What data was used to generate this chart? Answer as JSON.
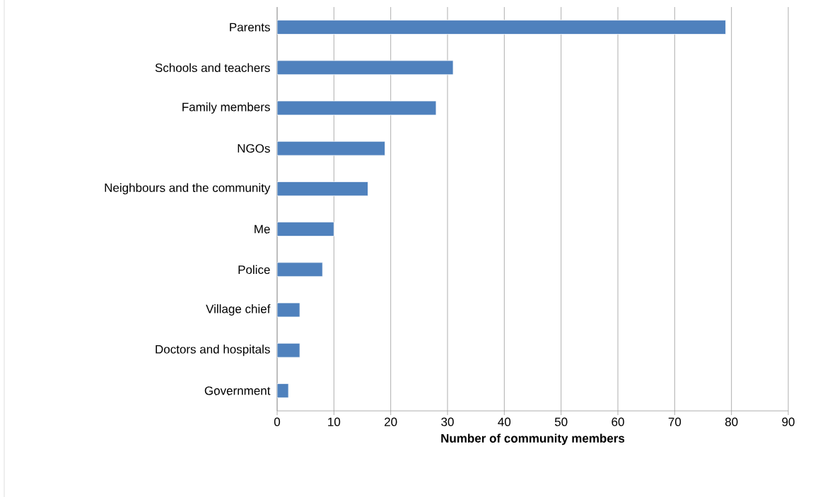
{
  "chart_data": {
    "type": "bar",
    "orientation": "horizontal",
    "xlabel": "Number of community members",
    "categories": [
      "Parents",
      "Schools and teachers",
      "Family members",
      "NGOs",
      "Neighbours and the community",
      "Me",
      "Police",
      "Village chief",
      "Doctors and hospitals",
      "Government"
    ],
    "values": [
      79,
      31,
      28,
      19,
      16,
      10,
      8,
      4,
      4,
      2
    ],
    "color": "#4f81bd",
    "xlim": [
      0,
      90
    ],
    "xticks": [
      0,
      10,
      20,
      30,
      40,
      50,
      60,
      70,
      80,
      90
    ],
    "grid": "x"
  }
}
